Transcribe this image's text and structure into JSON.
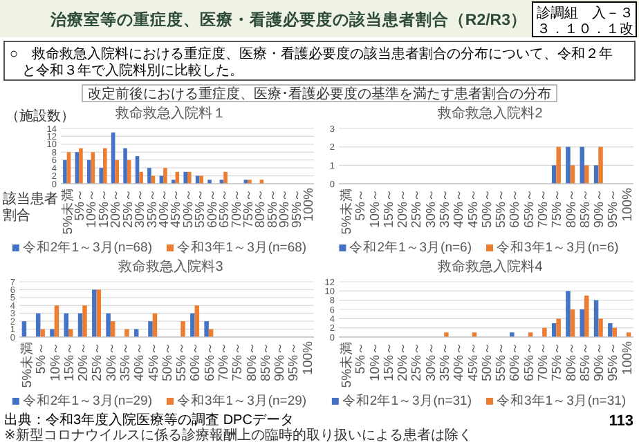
{
  "chart_data": [
    {
      "type": "other",
      "title": "治療室等の重症度、医療・看護必要度の該当患者割合（R2/R3）",
      "annotations": [
        "診調組　入－３",
        "３．１０．１改",
        "○　救命救急入院料における重症度、医療・看護必要度の該当患者割合の分布について、令和２年と令和３年で入院料別に比較した。",
        "改定前後における重症度、医療･看護必要度の基準を満たす患者割合の分布",
        "出典：令和3年度入院医療等の調査 DPCデータ",
        "※新型コロナウイルスに係る診療報酬上の臨時的取り扱いによる患者は除く",
        "113"
      ]
    },
    {
      "type": "bar",
      "title": "救命救急入院料１",
      "ylabel": "（施設数）",
      "xlabel": "該当患者割合",
      "categories": [
        "5%未満",
        "5%～",
        "10%～",
        "15%～",
        "20%～",
        "25%～",
        "30%～",
        "35%～",
        "40%～",
        "45%～",
        "50%～",
        "55%～",
        "60%～",
        "65%～",
        "70%～",
        "75%～",
        "80%～",
        "85%～",
        "90%～",
        "95%～",
        "100%"
      ],
      "series": [
        {
          "name": "令和2年1～3月(n=68)",
          "color": "#4472c4",
          "values": [
            6,
            8,
            6,
            4,
            13,
            9,
            7,
            4,
            2,
            1,
            3,
            2,
            1,
            1,
            0,
            1,
            0,
            0,
            0,
            0,
            0
          ]
        },
        {
          "name": "令和3年1～3月(n=68)",
          "color": "#ed7d31",
          "values": [
            8,
            9,
            8,
            9,
            6,
            6,
            3,
            2,
            4,
            3,
            3,
            2,
            0,
            3,
            0,
            1,
            1,
            0,
            0,
            0,
            0
          ]
        }
      ],
      "ylim": [
        0,
        14
      ],
      "yticks": [
        0,
        2,
        4,
        6,
        8,
        10,
        12,
        14
      ],
      "grid": "y",
      "legend": "bottom"
    },
    {
      "type": "bar",
      "title": "救命救急入院料2",
      "categories": [
        "5%未満",
        "5%～",
        "10%～",
        "15%～",
        "20%～",
        "25%～",
        "30%～",
        "35%～",
        "40%～",
        "45%～",
        "50%～",
        "55%～",
        "60%～",
        "65%～",
        "70%～",
        "75%～",
        "80%～",
        "85%～",
        "90%～",
        "95%～",
        "100%"
      ],
      "series": [
        {
          "name": "令和2年1～3月(n=6)",
          "color": "#4472c4",
          "values": [
            0,
            0,
            0,
            0,
            0,
            0,
            0,
            0,
            0,
            0,
            0,
            0,
            0,
            0,
            0,
            1,
            2,
            2,
            1,
            0,
            0
          ]
        },
        {
          "name": "令和3年1～3月(n=6)",
          "color": "#ed7d31",
          "values": [
            0,
            0,
            0,
            0,
            0,
            0,
            0,
            0,
            0,
            0,
            0,
            0,
            0,
            0,
            0,
            2,
            1,
            1,
            2,
            0,
            0
          ]
        }
      ],
      "ylim": [
        0,
        3
      ],
      "yticks": [
        0,
        1,
        2,
        3
      ],
      "grid": "y",
      "legend": "bottom"
    },
    {
      "type": "bar",
      "title": "救命救急入院料3",
      "categories": [
        "5%未満",
        "5%～",
        "10%～",
        "15%～",
        "20%～",
        "25%～",
        "30%～",
        "35%～",
        "40%～",
        "45%～",
        "50%～",
        "55%～",
        "60%～",
        "65%～",
        "70%～",
        "75%～",
        "80%～",
        "85%～",
        "90%～",
        "95%～",
        "100%"
      ],
      "series": [
        {
          "name": "令和2年1～3月(n=29)",
          "color": "#4472c4",
          "values": [
            2,
            3,
            1,
            3,
            3,
            6,
            3,
            0,
            1,
            2,
            0,
            0,
            3,
            2,
            0,
            0,
            0,
            0,
            0,
            0,
            0
          ]
        },
        {
          "name": "令和3年1～3月(n=29)",
          "color": "#ed7d31",
          "values": [
            0,
            1,
            4,
            1,
            4,
            6,
            2,
            1,
            0,
            3,
            0,
            2,
            4,
            1,
            0,
            0,
            0,
            0,
            0,
            0,
            0
          ]
        }
      ],
      "ylim": [
        0,
        7
      ],
      "yticks": [
        0,
        1,
        2,
        3,
        4,
        5,
        6,
        7
      ],
      "grid": "y",
      "legend": "bottom"
    },
    {
      "type": "bar",
      "title": "救命救急入院料4",
      "categories": [
        "5%未満",
        "5%～",
        "10%～",
        "15%～",
        "20%～",
        "25%～",
        "30%～",
        "35%～",
        "40%～",
        "45%～",
        "50%～",
        "55%～",
        "60%～",
        "65%～",
        "70%～",
        "75%～",
        "80%～",
        "85%～",
        "90%～",
        "95%～",
        "100%"
      ],
      "series": [
        {
          "name": "令和2年1～3月(n=31)",
          "color": "#4472c4",
          "values": [
            0,
            0,
            0,
            0,
            0,
            0,
            0,
            0,
            0,
            0,
            0,
            0,
            1,
            0,
            0,
            3,
            10,
            6,
            8,
            3,
            0
          ]
        },
        {
          "name": "令和3年1～3月(n=31)",
          "color": "#ed7d31",
          "values": [
            0,
            0,
            0,
            0,
            0,
            0,
            0,
            1,
            0,
            1,
            0,
            0,
            0,
            1,
            2,
            4,
            6,
            9,
            4,
            2,
            1
          ]
        }
      ],
      "ylim": [
        0,
        12
      ],
      "yticks": [
        0,
        2,
        4,
        6,
        8,
        10,
        12
      ],
      "grid": "y",
      "legend": "bottom"
    }
  ]
}
